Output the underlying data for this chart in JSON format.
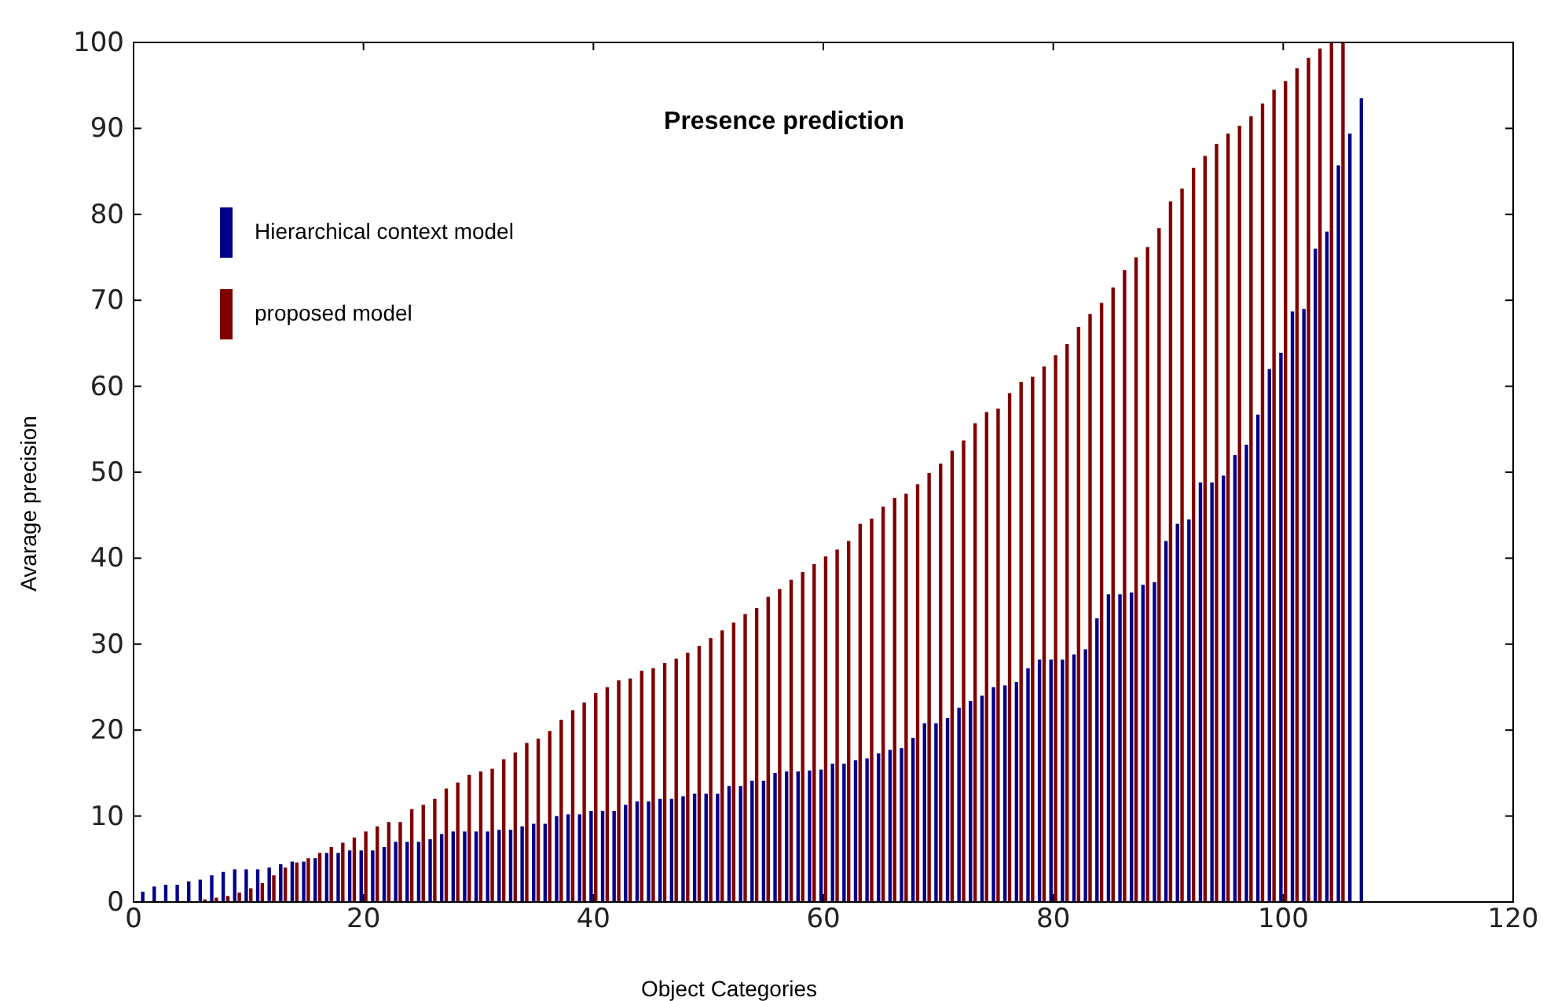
{
  "chart_data": {
    "type": "bar",
    "title": "Presence prediction",
    "xlabel": "Object Categories",
    "ylabel": "Avarage precision",
    "x": [
      1,
      2,
      3,
      4,
      5,
      6,
      7,
      8,
      9,
      10,
      11,
      12,
      13,
      14,
      15,
      16,
      17,
      18,
      19,
      20,
      21,
      22,
      23,
      24,
      25,
      26,
      27,
      28,
      29,
      30,
      31,
      32,
      33,
      34,
      35,
      36,
      37,
      38,
      39,
      40,
      41,
      42,
      43,
      44,
      45,
      46,
      47,
      48,
      49,
      50,
      51,
      52,
      53,
      54,
      55,
      56,
      57,
      58,
      59,
      60,
      61,
      62,
      63,
      64,
      65,
      66,
      67,
      68,
      69,
      70,
      71,
      72,
      73,
      74,
      75,
      76,
      77,
      78,
      79,
      80,
      81,
      82,
      83,
      84,
      85,
      86,
      87,
      88,
      89,
      90,
      91,
      92,
      93,
      94,
      95,
      96,
      97,
      98,
      99,
      100,
      101,
      102,
      103,
      104,
      105,
      106,
      107
    ],
    "series": [
      {
        "name": "Hierarchical context model",
        "color": "#00008b",
        "values": [
          1.2,
          1.8,
          2.0,
          2.0,
          2.4,
          2.6,
          3.1,
          3.5,
          3.8,
          3.8,
          3.8,
          4.0,
          4.4,
          4.7,
          4.7,
          5.1,
          5.7,
          5.7,
          6.0,
          6.0,
          6.0,
          6.4,
          7.0,
          7.0,
          7.0,
          7.3,
          7.9,
          8.2,
          8.2,
          8.2,
          8.2,
          8.4,
          8.4,
          8.8,
          9.1,
          9.1,
          10,
          10.2,
          10.2,
          10.6,
          10.6,
          10.6,
          11.3,
          11.7,
          11.7,
          12,
          12,
          12.3,
          12.6,
          12.6,
          12.6,
          13.5,
          13.5,
          14.1,
          14.1,
          15,
          15.2,
          15.2,
          15.3,
          15.4,
          16.1,
          16.1,
          16.5,
          16.7,
          17.3,
          17.7,
          17.9,
          19.1,
          20.8,
          20.8,
          21.4,
          22.6,
          23.4,
          24,
          25,
          25.2,
          25.6,
          27.2,
          28.2,
          28.2,
          28.2,
          28.8,
          29.4,
          33,
          35.8,
          35.8,
          36.0,
          36.9,
          37.2,
          42,
          44,
          44.5,
          48.8,
          48.8,
          49.6,
          52,
          53.2,
          56.7,
          62,
          63.9,
          68.7,
          69,
          76,
          78,
          85.7,
          89.4,
          93.5
        ]
      },
      {
        "name": "proposed model",
        "color": "#800000",
        "values": [
          0,
          0,
          0,
          0,
          0,
          0.3,
          0.5,
          0.7,
          1.1,
          1.6,
          2.2,
          3.1,
          4.0,
          4.6,
          5.1,
          5.7,
          6.4,
          6.9,
          7.5,
          8.2,
          8.8,
          9.3,
          9.3,
          10.8,
          11.3,
          12,
          13.2,
          13.9,
          14.8,
          15.2,
          15.5,
          16.6,
          17.4,
          18.5,
          19,
          19.9,
          21.2,
          22.3,
          23.2,
          24.3,
          25,
          25.8,
          26,
          26.9,
          27.2,
          27.8,
          28.3,
          29,
          29.8,
          30.7,
          31.6,
          32.5,
          33.5,
          34.2,
          35.5,
          36.4,
          37.5,
          38.4,
          39.3,
          40.2,
          41,
          42,
          44,
          44.6,
          46,
          47,
          47.5,
          48.6,
          49.9,
          51,
          52.5,
          53.7,
          55.7,
          57,
          57.4,
          59.2,
          60.5,
          61.1,
          62.3,
          63.6,
          64.9,
          66.9,
          68.4,
          69.7,
          71.5,
          73.5,
          75,
          76.2,
          78.4,
          81.5,
          83,
          85.4,
          86.8,
          88.2,
          89.4,
          90.3,
          91.4,
          92.9,
          94.5,
          95.5,
          97,
          98.2,
          99.3,
          100,
          100,
          null,
          null
        ]
      }
    ],
    "xlim": [
      0,
      120
    ],
    "xticks": [
      0,
      20,
      40,
      60,
      80,
      100,
      120
    ],
    "ylim": [
      0,
      100
    ],
    "yticks": [
      0,
      10,
      20,
      30,
      40,
      50,
      60,
      70,
      80,
      90,
      100
    ],
    "grid": false,
    "legend": "top left"
  }
}
